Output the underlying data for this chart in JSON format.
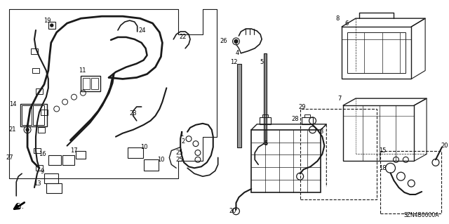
{
  "bg_color": "#ffffff",
  "fig_width": 6.4,
  "fig_height": 3.19,
  "dpi": 100,
  "diagram_code": "SZN4B0600A",
  "line_color": "#1a1a1a",
  "text_color": "#000000"
}
